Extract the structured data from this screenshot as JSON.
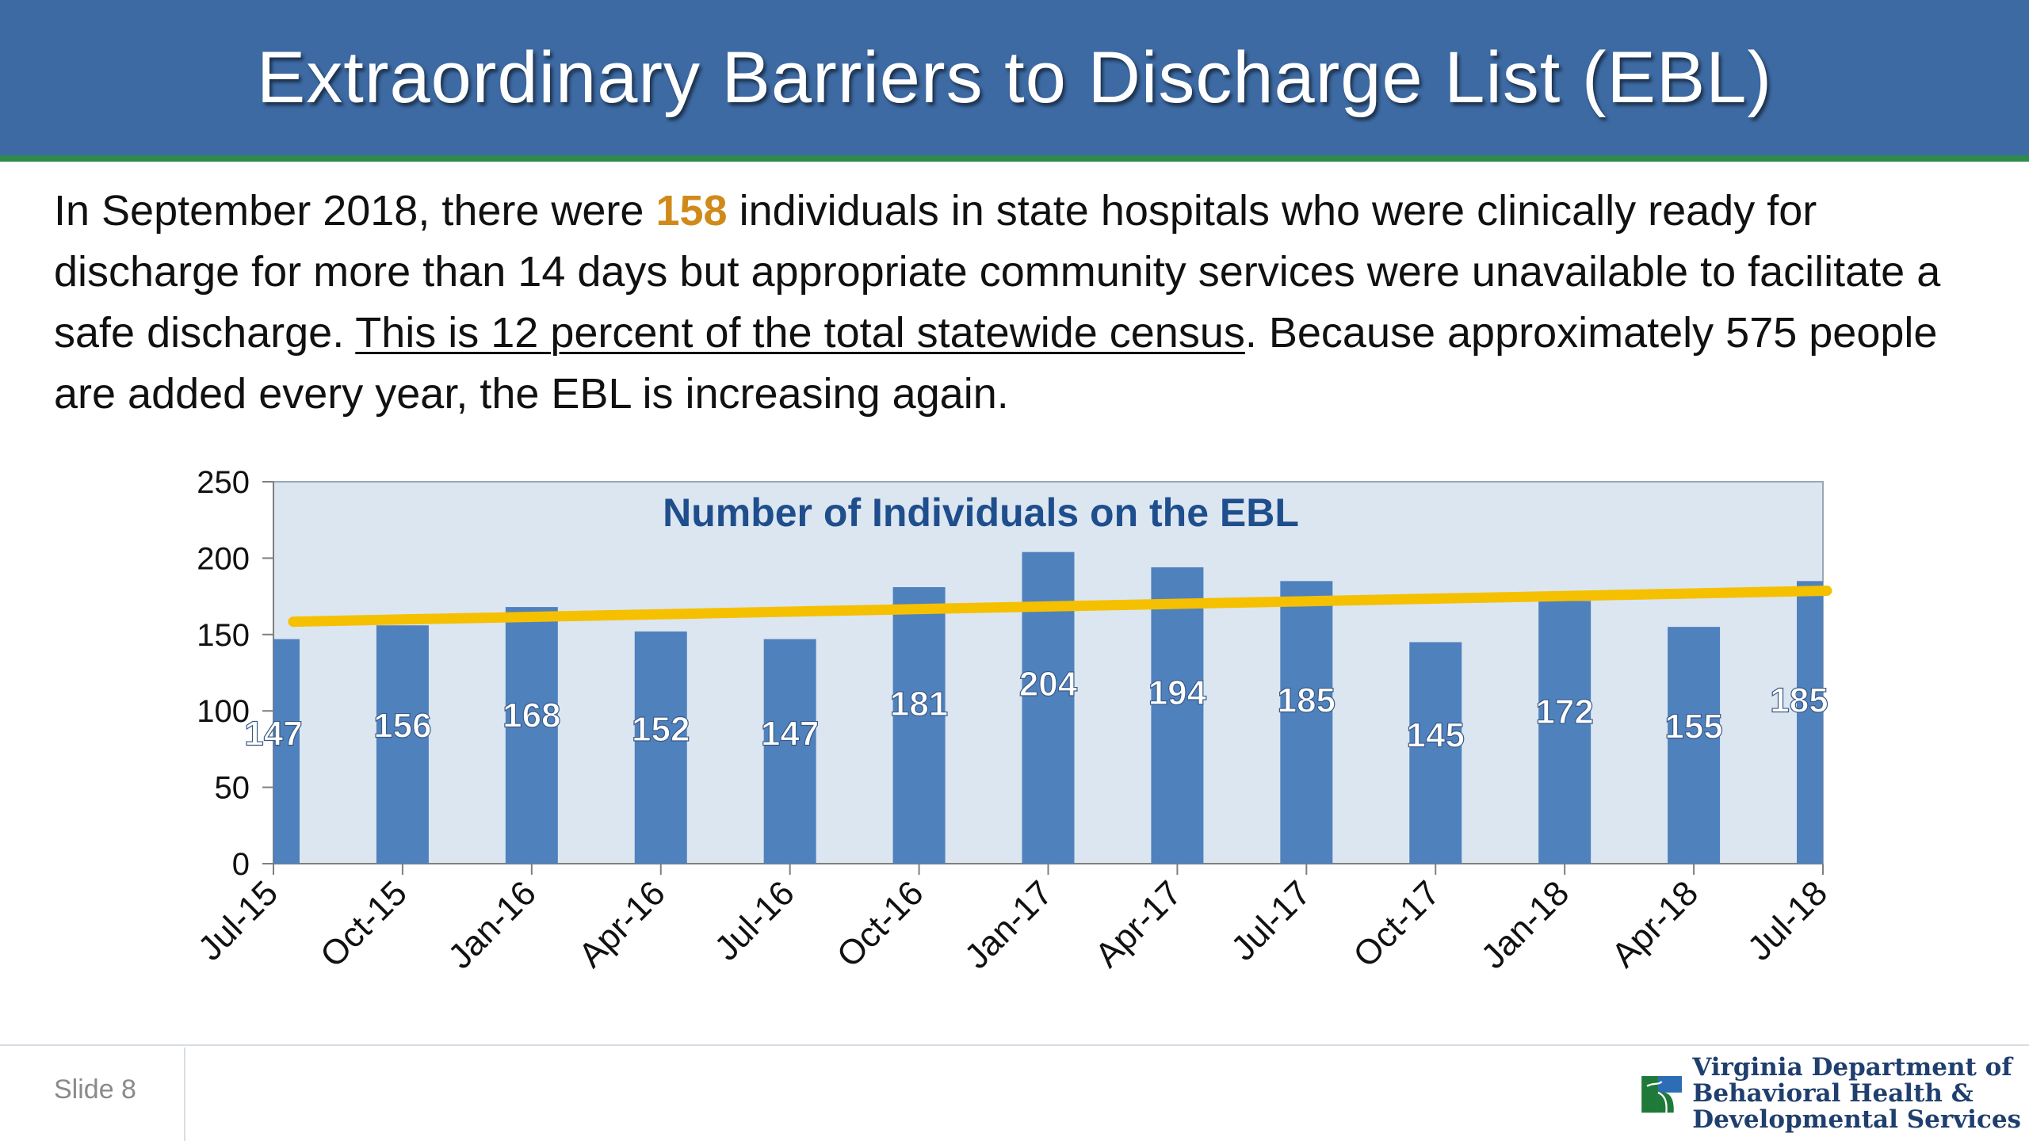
{
  "title": "Extraordinary Barriers to Discharge List (EBL)",
  "summary": {
    "part1": "In September 2018, there were ",
    "highlight": "158",
    "part2": " individuals in state hospitals who were clinically ready for discharge for more than 14 days but appropriate community services were unavailable to facilitate a safe discharge. ",
    "underlined": "This is 12 percent of the total statewide census",
    "part3": ". Because approximately 575 people are added every year, the EBL is increasing again."
  },
  "chart_data": {
    "type": "bar",
    "title": "Number of Individuals on the EBL",
    "categories": [
      "Jul-15",
      "Oct-15",
      "Jan-16",
      "Apr-16",
      "Jul-16",
      "Oct-16",
      "Jan-17",
      "Apr-17",
      "Jul-17",
      "Oct-17",
      "Jan-18",
      "Apr-18",
      "Jul-18"
    ],
    "values": [
      147,
      156,
      168,
      152,
      147,
      181,
      204,
      194,
      185,
      145,
      172,
      155,
      185
    ],
    "ylim": [
      0,
      250
    ],
    "yticks": [
      0,
      50,
      100,
      150,
      200,
      250
    ],
    "grid": false,
    "trendline": {
      "type": "linear",
      "color": "#f5c000"
    },
    "colors": {
      "bar": "#4f81bd",
      "plot_bg": "#dce6f1",
      "title": "#1f4e8c",
      "label": "#ffffff"
    }
  },
  "footer": {
    "slide": "Slide 8",
    "logo_text": [
      "Virginia Department of",
      "Behavioral Health &",
      "Developmental Services"
    ]
  },
  "colors": {
    "title_bar": "#3d6aa3",
    "title_rule": "#2f8a4b",
    "highlight": "#d08a1a"
  }
}
